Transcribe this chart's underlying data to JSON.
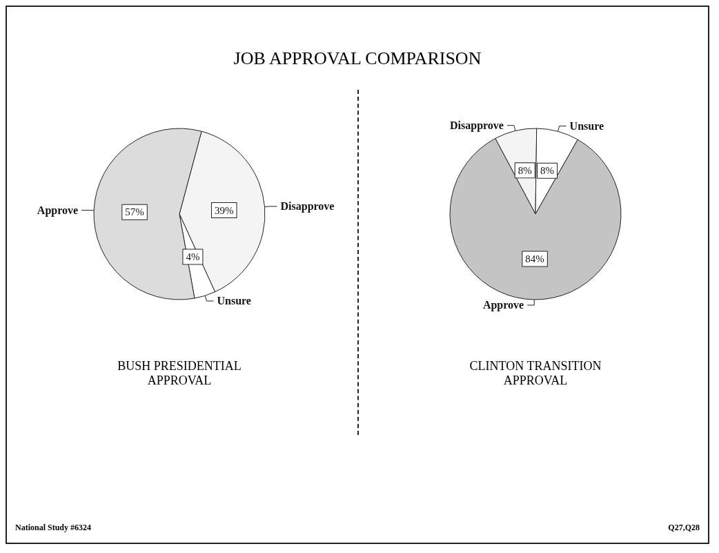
{
  "chart_data": [
    {
      "type": "pie",
      "title": "JOB APPROVAL COMPARISON",
      "subtitle": "BUSH PRESIDENTIAL\nAPPROVAL",
      "categories": [
        "Disapprove",
        "Unsure",
        "Approve"
      ],
      "values": [
        39,
        4,
        57
      ],
      "colors": [
        "#f4f4f4",
        "#ffffff",
        "#dcdcdc"
      ],
      "value_labels": [
        "39%",
        "4%",
        "57%"
      ],
      "annotations": [
        "National Study #6324"
      ]
    },
    {
      "type": "pie",
      "subtitle": "CLINTON TRANSITION\nAPPROVAL",
      "categories": [
        "Disapprove",
        "Unsure",
        "Approve"
      ],
      "values": [
        8,
        8,
        84
      ],
      "colors": [
        "#f4f4f4",
        "#ffffff",
        "#c4c4c4"
      ],
      "value_labels": [
        "8%",
        "8%",
        "84%"
      ],
      "annotations": [
        "Q27,Q28"
      ]
    }
  ]
}
